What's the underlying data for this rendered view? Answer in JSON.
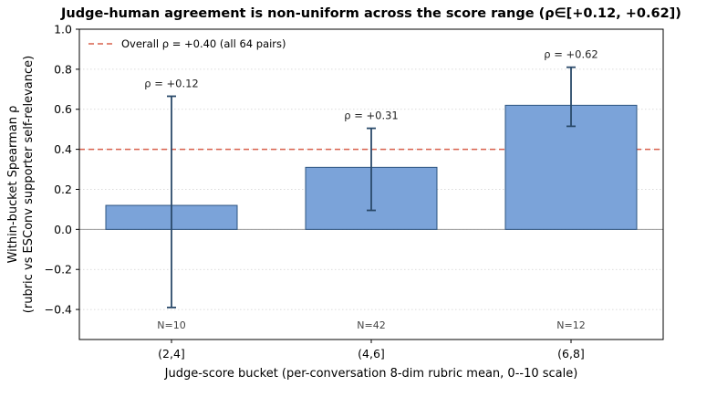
{
  "chart_data": {
    "type": "bar",
    "title": "Judge-human agreement is non-uniform across the score range (ρ∈[+0.12, +0.62])",
    "xlabel": "Judge-score bucket (per-conversation 8-dim rubric mean, 0--10 scale)",
    "ylabel_line1": "Within-bucket Spearman ρ",
    "ylabel_line2": "(rubric vs ESConv supporter self-relevance)",
    "categories": [
      "(2,4]",
      "(4,6]",
      "(6,8]"
    ],
    "values": [
      0.12,
      0.31,
      0.62
    ],
    "error_low": [
      -0.39,
      0.095,
      0.515
    ],
    "error_high": [
      0.665,
      0.505,
      0.81
    ],
    "annotations": [
      "ρ = +0.12",
      "ρ = +0.31",
      "ρ = +0.62"
    ],
    "counts": [
      "N=10",
      "N=42",
      "N=12"
    ],
    "ylim": [
      -0.55,
      1.0
    ],
    "yticks": [
      -0.4,
      -0.2,
      0.0,
      0.2,
      0.4,
      0.6,
      0.8,
      1.0
    ],
    "ytick_labels": [
      "−0.4",
      "−0.2",
      "0.0",
      "0.2",
      "0.4",
      "0.6",
      "0.8",
      "1.0"
    ],
    "reference_line": {
      "value": 0.4,
      "label": "Overall ρ = +0.40 (all 64 pairs)",
      "color": "#d9604c"
    },
    "grid": "y-dotted",
    "legend_position": "top-left",
    "colors": {
      "bar_fill": "#7ba3d9",
      "bar_edge": "#2d5480",
      "error_bar": "#2a4a6a",
      "zero_line": "#999999"
    }
  }
}
